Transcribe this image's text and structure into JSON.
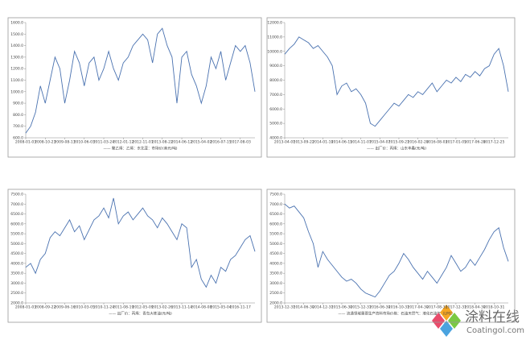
{
  "chart_data": [
    {
      "type": "line",
      "categories": [
        "2008-01-03",
        null,
        null,
        null,
        "2008-10-23",
        null,
        null,
        null,
        "2009-08-13",
        null,
        null,
        null,
        "2010-06-03",
        null,
        null,
        null,
        "2011-03-24",
        null,
        null,
        null,
        "2012-01-12",
        null,
        null,
        null,
        "2012-11-01",
        null,
        null,
        null,
        "2013-08-22",
        null,
        null,
        null,
        "2014-06-12",
        null,
        null,
        null,
        "2015-04-02",
        null,
        null,
        null,
        "2016-07-15",
        null,
        null,
        null,
        "2017-08-03",
        null,
        null,
        null
      ],
      "series": [
        {
          "name": "—— 聚乙烯：乙烯：东北亚：市场价(美元/吨)",
          "color": "#4a72b0",
          "values": [
            640,
            700,
            820,
            1050,
            900,
            1100,
            1300,
            1200,
            900,
            1100,
            1350,
            1250,
            1050,
            1250,
            1300,
            1100,
            1200,
            1350,
            1200,
            1100,
            1250,
            1300,
            1400,
            1450,
            1500,
            1450,
            1250,
            1500,
            1550,
            1400,
            1300,
            900,
            1300,
            1350,
            1150,
            1050,
            900,
            1050,
            1300,
            1200,
            1350,
            1100,
            1250,
            1400,
            1350,
            1400,
            1250,
            1000
          ]
        }
      ],
      "ylim": [
        600,
        1600
      ],
      "yticks": [
        {
          "value": 600,
          "label": "600.0"
        },
        {
          "value": 700,
          "label": "700.0"
        },
        {
          "value": 800,
          "label": "800.0"
        },
        {
          "value": 900,
          "label": "900.0"
        },
        {
          "value": 1000,
          "label": "1000.0"
        },
        {
          "value": 1100,
          "label": "1100.0"
        },
        {
          "value": 1200,
          "label": "1200.0"
        },
        {
          "value": 1300,
          "label": "1300.0"
        },
        {
          "value": 1400,
          "label": "1400.0"
        },
        {
          "value": 1500,
          "label": "1500.0"
        },
        {
          "value": 1600,
          "label": "1600.0"
        }
      ]
    },
    {
      "type": "line",
      "categories": [
        "2013-04-01",
        null,
        null,
        null,
        "2013-09-22",
        null,
        null,
        null,
        "2014-01-19",
        null,
        null,
        null,
        "2014-06-15",
        null,
        null,
        null,
        "2014-11-07",
        null,
        null,
        null,
        "2015-04-07",
        null,
        null,
        null,
        "2015-09-21",
        null,
        null,
        null,
        "2016-02-28",
        null,
        null,
        null,
        "2016-08-03",
        null,
        null,
        null,
        "2017-01-05",
        null,
        null,
        null,
        "2017-06-28",
        null,
        null,
        null,
        "2017-12-25",
        null,
        null,
        null
      ],
      "series": [
        {
          "name": "—— 出厂价：丙烯：山东丰鑫(元/吨)",
          "color": "#4a72b0",
          "values": [
            9800,
            10200,
            10500,
            11000,
            10800,
            10600,
            10200,
            10400,
            10000,
            9600,
            9000,
            7000,
            7600,
            7800,
            7200,
            7400,
            7000,
            6400,
            5000,
            4800,
            5200,
            5600,
            6000,
            6400,
            6200,
            6600,
            7000,
            6800,
            7200,
            7000,
            7400,
            7800,
            7200,
            7600,
            8000,
            7800,
            8200,
            7900,
            8400,
            8200,
            8600,
            8300,
            8800,
            9000,
            9800,
            10200,
            9000,
            7200
          ]
        }
      ],
      "ylim": [
        4000,
        12000
      ],
      "yticks": [
        {
          "value": 4000,
          "label": "4000.0"
        },
        {
          "value": 5000,
          "label": "5000.0"
        },
        {
          "value": 6000,
          "label": "6000.0"
        },
        {
          "value": 7000,
          "label": "7000.0"
        },
        {
          "value": 8000,
          "label": "8000.0"
        },
        {
          "value": 9000,
          "label": "9000.0"
        },
        {
          "value": 10000,
          "label": "10000.0"
        },
        {
          "value": 11000,
          "label": "11000.0"
        },
        {
          "value": 12000,
          "label": "12000.0"
        }
      ]
    },
    {
      "type": "line",
      "categories": [
        "2008-01-03",
        null,
        null,
        null,
        "2008-09-22",
        null,
        null,
        null,
        "2009-06-16",
        null,
        null,
        null,
        "2010-03-05",
        null,
        null,
        null,
        "2010-11-24",
        null,
        null,
        null,
        "2011-08-19",
        null,
        null,
        null,
        "2012-05-09",
        null,
        null,
        null,
        "2013-02-26",
        null,
        null,
        null,
        "2013-11-14",
        null,
        null,
        null,
        "2014-08-08",
        null,
        null,
        null,
        "2015-05-04",
        null,
        null,
        null,
        "2016-11-17",
        null,
        null,
        null
      ],
      "series": [
        {
          "name": "—— 出厂价：丙烯：青岛大炼油(元/吨)",
          "color": "#4a72b0",
          "values": [
            3800,
            4000,
            3500,
            4200,
            4500,
            5300,
            5600,
            5400,
            5800,
            6200,
            5600,
            5900,
            5200,
            5700,
            6200,
            6400,
            6800,
            6300,
            7300,
            6000,
            6400,
            6600,
            6200,
            6500,
            6800,
            6400,
            6200,
            5800,
            6300,
            6000,
            5600,
            5200,
            6000,
            5800,
            3800,
            4200,
            3200,
            2800,
            3400,
            3000,
            3800,
            3600,
            4200,
            4400,
            4800,
            5200,
            5400,
            4600
          ]
        }
      ],
      "ylim": [
        2000,
        7500
      ],
      "yticks": [
        {
          "value": 2000,
          "label": "2000.0"
        },
        {
          "value": 2500,
          "label": "2500.0"
        },
        {
          "value": 3000,
          "label": "3000.0"
        },
        {
          "value": 3500,
          "label": "3500.0"
        },
        {
          "value": 4000,
          "label": "4000.0"
        },
        {
          "value": 4500,
          "label": "4500.0"
        },
        {
          "value": 5000,
          "label": "5000.0"
        },
        {
          "value": 5500,
          "label": "5500.0"
        },
        {
          "value": 6000,
          "label": "6000.0"
        },
        {
          "value": 6500,
          "label": "6500.0"
        },
        {
          "value": 7000,
          "label": "7000.0"
        },
        {
          "value": 7500,
          "label": "7500.0"
        }
      ]
    },
    {
      "type": "line",
      "categories": [
        "2013-12-31",
        null,
        null,
        null,
        "2014-06-30",
        null,
        null,
        null,
        "2014-12-31",
        null,
        null,
        null,
        "2015-06-30",
        null,
        null,
        null,
        "2015-12-31",
        null,
        null,
        null,
        "2016-06-30",
        null,
        null,
        null,
        "2016-10-31",
        null,
        null,
        null,
        "2017-04-30",
        null,
        null,
        null,
        "2017-08-31",
        null,
        null,
        null,
        "2017-12-31",
        null,
        null,
        null,
        "2018-04-30",
        null,
        null,
        null,
        "2018-10-31",
        null,
        null,
        null
      ],
      "series": [
        {
          "name": "—— 流通领域重要生产资料市场价格：石油天然气：液化石油气（LPG）",
          "color": "#4a72b0",
          "values": [
            7000,
            6800,
            6900,
            6600,
            6300,
            5600,
            5000,
            3800,
            4600,
            4200,
            3900,
            3600,
            3300,
            3100,
            3200,
            3000,
            2700,
            2500,
            2400,
            2300,
            2600,
            3000,
            3400,
            3600,
            4000,
            4500,
            4200,
            3800,
            3500,
            3200,
            3600,
            3300,
            3000,
            3400,
            3800,
            4400,
            4000,
            3600,
            3800,
            4200,
            3900,
            4300,
            4700,
            5200,
            5600,
            5800,
            4800,
            4100
          ]
        }
      ],
      "ylim": [
        2000,
        7500
      ],
      "yticks": [
        {
          "value": 2000,
          "label": "2000.0"
        },
        {
          "value": 2500,
          "label": "2500.0"
        },
        {
          "value": 3000,
          "label": "3000.0"
        },
        {
          "value": 3500,
          "label": "3500.0"
        },
        {
          "value": 4000,
          "label": "4000.0"
        },
        {
          "value": 4500,
          "label": "4500.0"
        },
        {
          "value": 5000,
          "label": "5000.0"
        },
        {
          "value": 5500,
          "label": "5500.0"
        },
        {
          "value": 6000,
          "label": "6000.0"
        },
        {
          "value": 6500,
          "label": "6500.0"
        },
        {
          "value": 7000,
          "label": "7000.0"
        },
        {
          "value": 7500,
          "label": "7500.0"
        }
      ]
    }
  ],
  "watermark": {
    "name": "涂料在线",
    "site": "Coatingol.com"
  }
}
